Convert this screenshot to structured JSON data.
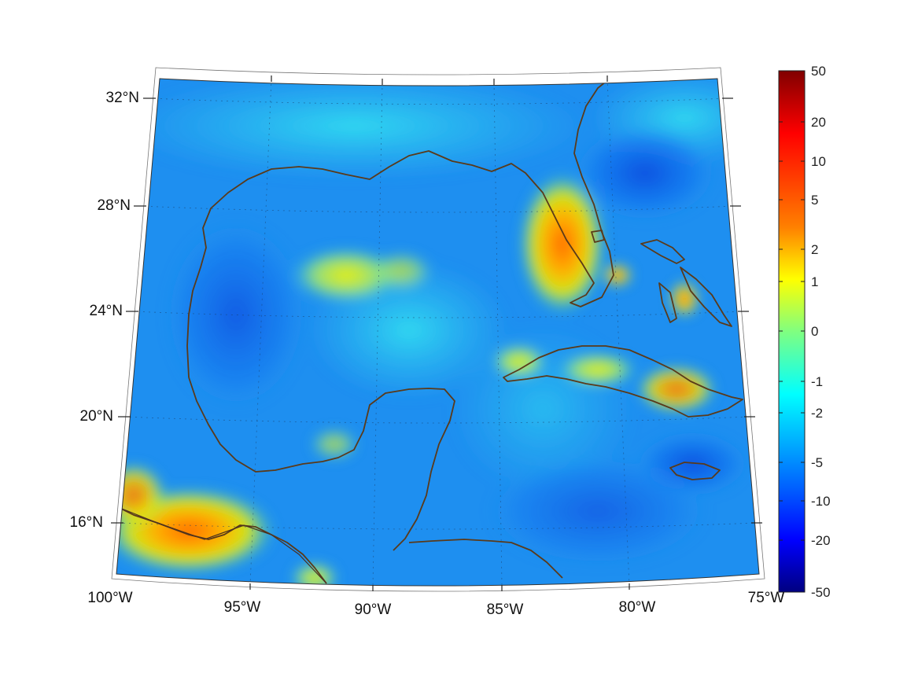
{
  "map": {
    "lon_labels": [
      "100°W",
      "95°W",
      "90°W",
      "85°W",
      "80°W",
      "75°W"
    ],
    "lat_labels": [
      "32°N",
      "28°N",
      "24°N",
      "20°N",
      "16°N"
    ],
    "lon_range": [
      -100,
      -75
    ],
    "lat_range": [
      14,
      33
    ]
  },
  "colorbar": {
    "tick_labels": [
      "50",
      "20",
      "10",
      "5",
      "2",
      "1",
      "0",
      "-1",
      "-2",
      "-5",
      "-10",
      "-20",
      "-50"
    ],
    "colormap": "jet",
    "colors": {
      "top": "#800000",
      "red": "#ff0000",
      "orange": "#ff8000",
      "yellow": "#ffff00",
      "cyan": "#00ffff",
      "blue": "#0000ff",
      "bottom": "#000080"
    }
  },
  "colors": {
    "coastline": "#5a3a1a",
    "background": "#ffffff"
  }
}
